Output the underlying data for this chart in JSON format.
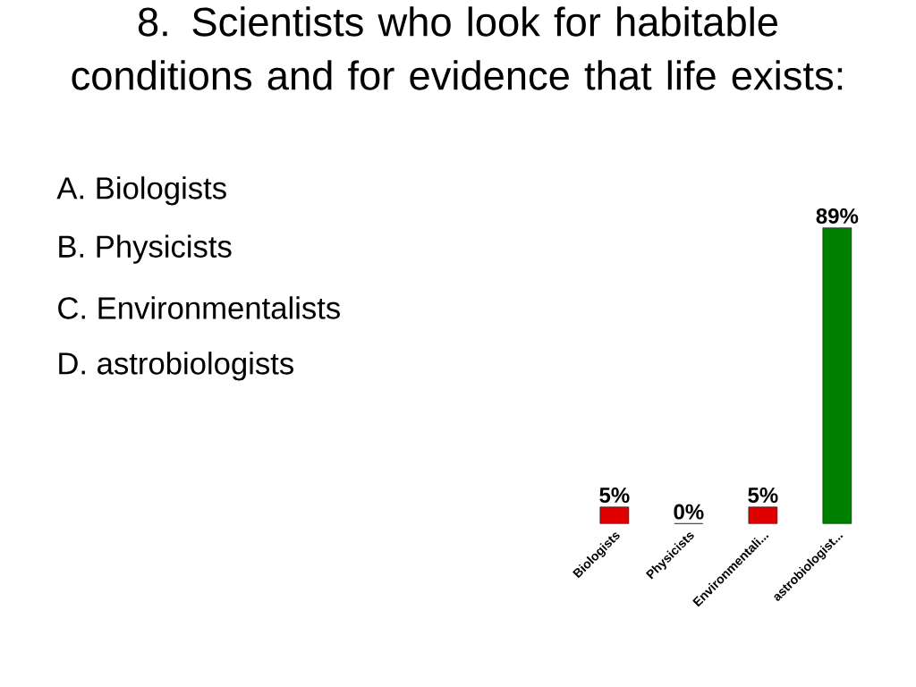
{
  "chart_data": {
    "type": "bar",
    "title": "8. Scientists who look for habitable conditions and for evidence that life exists:",
    "annotations": [
      "A.  Biologists",
      "B.  Physicists",
      "C.  Environmentalists",
      "D.  astrobiologists"
    ],
    "categories": [
      "Biologists",
      "Physicists",
      "Environmentali...",
      "astrobiologist..."
    ],
    "values": [
      5,
      0,
      5,
      89
    ],
    "colors": [
      "#e00000",
      "#e00000",
      "#e00000",
      "#008000"
    ],
    "value_labels": [
      "5%",
      "0%",
      "5%",
      "89%"
    ]
  }
}
